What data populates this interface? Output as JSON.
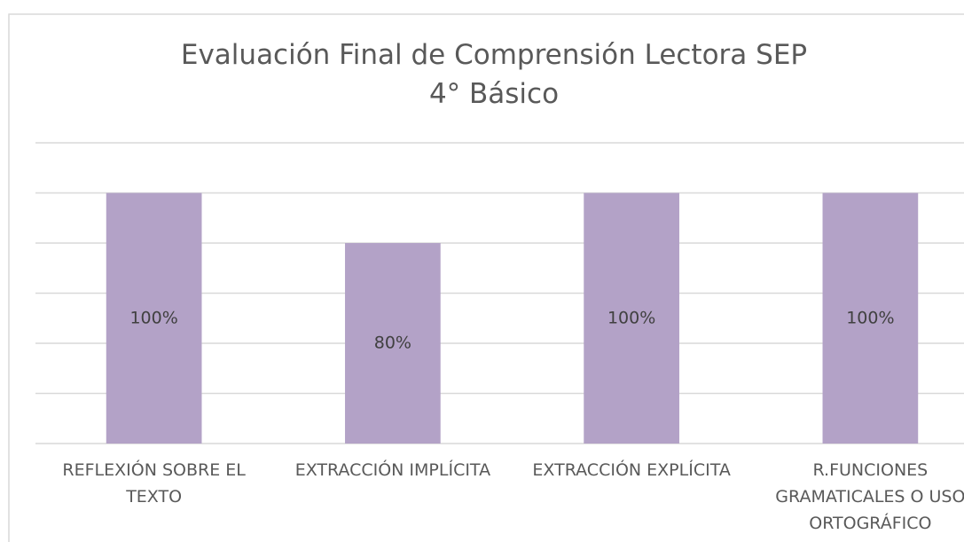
{
  "chart_data": {
    "type": "bar",
    "title": "Evaluación  Final de Comprensión Lectora SEP\n4° Básico",
    "categories": [
      "REFLEXIÓN SOBRE EL TEXTO",
      "EXTRACCIÓN IMPLÍCITA",
      "EXTRACCIÓN EXPLÍCITA",
      "R.FUNCIONES GRAMATICALES O USO ORTOGRÁFICO"
    ],
    "values": [
      100,
      80,
      100,
      100
    ],
    "value_labels": [
      "100%",
      "80%",
      "100%",
      "100%"
    ],
    "color": "#b3a2c7",
    "ylim": [
      0,
      120
    ],
    "yticks": [
      0,
      20,
      40,
      60,
      80,
      100,
      120
    ],
    "grid": true
  }
}
